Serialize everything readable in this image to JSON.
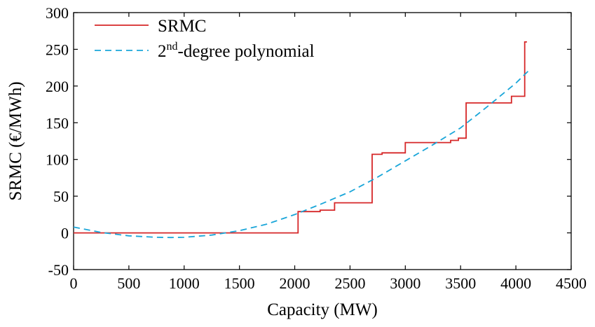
{
  "chart_data": {
    "type": "line",
    "xlabel": "Capacity (MW)",
    "ylabel": "SRMC (€/MWh)",
    "xlim": [
      0,
      4500
    ],
    "ylim": [
      -50,
      300
    ],
    "xticks": [
      "0",
      "500",
      "1000",
      "1500",
      "2000",
      "2500",
      "3000",
      "3500",
      "4000",
      "4500"
    ],
    "yticks": [
      "-50",
      "0",
      "50",
      "100",
      "150",
      "200",
      "250",
      "300"
    ],
    "grid": false,
    "legend_position": "top-left",
    "series": [
      {
        "name": "SRMC",
        "style": "step",
        "color": "#d62728",
        "x": [
          0,
          2030,
          2030,
          2230,
          2230,
          2360,
          2360,
          2700,
          2700,
          2790,
          2790,
          3000,
          3000,
          3410,
          3410,
          3480,
          3480,
          3550,
          3550,
          3960,
          3960,
          4080,
          4080,
          4100
        ],
        "y": [
          0,
          0,
          29,
          29,
          31,
          31,
          41,
          41,
          107,
          107,
          109,
          109,
          123,
          123,
          126,
          126,
          129,
          129,
          177,
          177,
          186,
          186,
          260,
          260
        ]
      },
      {
        "name": "2nd-degree polynomial",
        "legend_base": "2",
        "legend_sup": "nd",
        "legend_rest": "-degree polynomial",
        "style": "dashed",
        "color": "#1aa6d9",
        "x": [
          0,
          250,
          500,
          750,
          880,
          1000,
          1250,
          1500,
          1750,
          2000,
          2250,
          2500,
          2750,
          3000,
          3250,
          3500,
          3750,
          4000,
          4130
        ],
        "y": [
          8,
          0.5,
          -4,
          -6,
          -6.3,
          -6,
          -3,
          3,
          12,
          25,
          40,
          56,
          76,
          98,
          120,
          143,
          173,
          204,
          223
        ]
      }
    ]
  }
}
